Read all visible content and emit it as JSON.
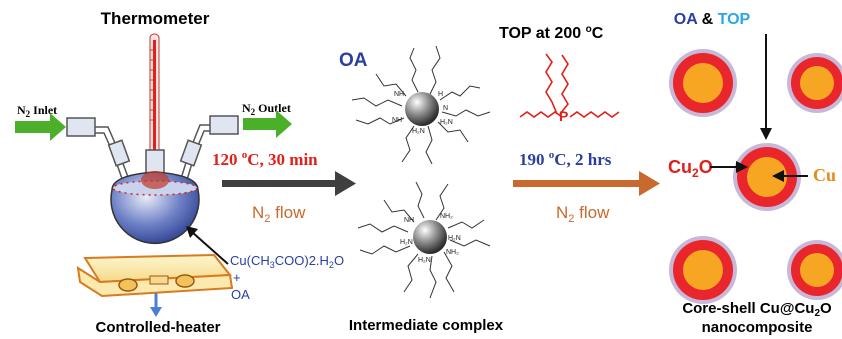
{
  "setup": {
    "thermometer": "Thermometer",
    "n2_inlet": "N",
    "n2_inlet_sub": "2",
    "n2_inlet_rest": " Inlet",
    "n2_outlet": "N",
    "n2_outlet_sub": "2",
    "n2_outlet_rest": " Outlet",
    "precursor_line1": "Cu(CH",
    "precursor_sub1": "3",
    "precursor_mid": "COO)2.H",
    "precursor_sub2": "2",
    "precursor_end": "O",
    "plus": "+",
    "oa": "OA",
    "heater": "Controlled-heater"
  },
  "step1": {
    "temp_pre": "120 ",
    "temp_sup": "o",
    "temp_post": "C, 30 min",
    "flow": "N",
    "flow_sub": "2",
    "flow_rest": " flow"
  },
  "intermediate": {
    "oa_label": "OA",
    "caption": "Intermediate complex"
  },
  "step2": {
    "top_pre": "TOP at 200 ",
    "top_sup": "o",
    "top_post": "C",
    "temp_pre": "190 ",
    "temp_sup": "o",
    "temp_post": "C, 2 hrs",
    "flow": "N",
    "flow_sub": "2",
    "flow_rest": " flow"
  },
  "product": {
    "oa": "OA",
    "amp": " & ",
    "top": "TOP",
    "cu2o": "Cu",
    "cu2o_sub": "2",
    "cu2o_end": "O",
    "cu": "Cu",
    "caption1_pre": "Core-shell Cu@Cu",
    "caption1_sub": "2",
    "caption1_end": "O",
    "caption2": "nanocomposite"
  },
  "colors": {
    "green_arrow": "#4caf2a",
    "gray_arrow": "#3f3f3f",
    "orange_arrow": "#c86a2e",
    "red_text": "#e0201a",
    "blue_text": "#2a3fa0",
    "cyan_text": "#2aa8e0",
    "shell_red": "#e8262b",
    "core_orange": "#f6a623",
    "halo": "#c7b8d9"
  }
}
